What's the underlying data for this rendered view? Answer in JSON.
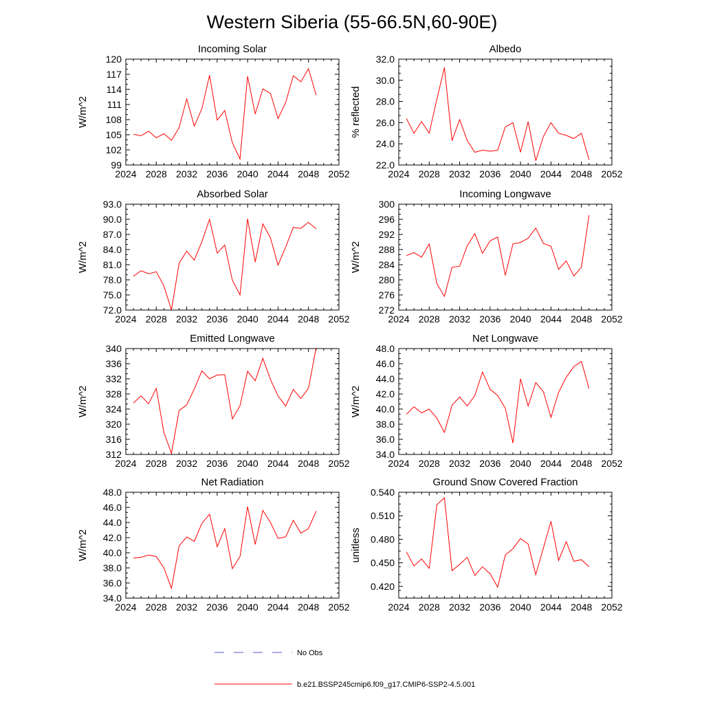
{
  "title": "Western Siberia (55-66.5N,60-90E)",
  "legend": {
    "entries": [
      {
        "label": "No Obs",
        "color": "#5555cc",
        "style": "dashed"
      },
      {
        "label": "b.e21.BSSP245cmip6.f09_g17.CMIP6-SSP2-4.5.001",
        "color": "#ff0000",
        "style": "solid"
      }
    ]
  },
  "chart_data": [
    {
      "type": "line",
      "title": "Incoming Solar",
      "ylabel": "W/m^2",
      "xlim": [
        2024,
        2052
      ],
      "xticks": [
        "2024",
        "2028",
        "2032",
        "2036",
        "2040",
        "2044",
        "2048",
        "2052"
      ],
      "ylim": [
        99,
        120
      ],
      "yticks": [
        "99",
        "102",
        "105",
        "108",
        "111",
        "114",
        "117",
        "120"
      ],
      "color": "#ff0000",
      "x": [
        2025,
        2026,
        2027,
        2028,
        2029,
        2030,
        2031,
        2032,
        2033,
        2034,
        2035,
        2036,
        2037,
        2038,
        2039,
        2040,
        2041,
        2042,
        2043,
        2044,
        2045,
        2046,
        2047,
        2048,
        2049
      ],
      "y": [
        105.1,
        104.8,
        105.7,
        104.4,
        105.2,
        103.9,
        106.4,
        112.1,
        106.7,
        110.2,
        116.8,
        107.9,
        109.8,
        103.4,
        100.2,
        116.6,
        109.1,
        114.1,
        113.2,
        108.2,
        111.4,
        116.7,
        115.5,
        118.1,
        112.9
      ]
    },
    {
      "type": "line",
      "title": "Albedo",
      "ylabel": "% reflected",
      "xlim": [
        2024,
        2052
      ],
      "xticks": [
        "2024",
        "2028",
        "2032",
        "2036",
        "2040",
        "2044",
        "2048",
        "2052"
      ],
      "ylim": [
        22.0,
        32.0
      ],
      "yticks": [
        "22.0",
        "24.0",
        "26.0",
        "28.0",
        "30.0",
        "32.0"
      ],
      "color": "#ff0000",
      "x": [
        2025,
        2026,
        2027,
        2028,
        2029,
        2030,
        2031,
        2032,
        2033,
        2034,
        2035,
        2036,
        2037,
        2038,
        2039,
        2040,
        2041,
        2042,
        2043,
        2044,
        2045,
        2046,
        2047,
        2048,
        2049
      ],
      "y": [
        26.4,
        25.0,
        26.1,
        25.0,
        28.2,
        31.2,
        24.3,
        26.3,
        24.3,
        23.2,
        23.4,
        23.3,
        23.4,
        25.6,
        26.0,
        23.2,
        26.1,
        22.4,
        24.7,
        26.0,
        25.0,
        24.8,
        24.5,
        25.0,
        22.5
      ]
    },
    {
      "type": "line",
      "title": "Absorbed Solar",
      "ylabel": "W/m^2",
      "xlim": [
        2024,
        2052
      ],
      "xticks": [
        "2024",
        "2028",
        "2032",
        "2036",
        "2040",
        "2044",
        "2048",
        "2052"
      ],
      "ylim": [
        72.0,
        93.0
      ],
      "yticks": [
        "72.0",
        "75.0",
        "78.0",
        "81.0",
        "84.0",
        "87.0",
        "90.0",
        "93.0"
      ],
      "color": "#ff0000",
      "x": [
        2025,
        2026,
        2027,
        2028,
        2029,
        2030,
        2031,
        2032,
        2033,
        2034,
        2035,
        2036,
        2037,
        2038,
        2039,
        2040,
        2041,
        2042,
        2043,
        2044,
        2045,
        2046,
        2047,
        2048,
        2049
      ],
      "y": [
        78.7,
        79.8,
        79.2,
        79.6,
        76.8,
        72.0,
        81.3,
        83.7,
        81.9,
        85.6,
        90.0,
        83.3,
        84.9,
        77.9,
        75.0,
        90.1,
        81.5,
        89.1,
        86.3,
        80.9,
        84.5,
        88.4,
        88.2,
        89.4,
        88.1
      ]
    },
    {
      "type": "line",
      "title": "Incoming Longwave",
      "ylabel": "W/m^2",
      "xlim": [
        2024,
        2052
      ],
      "xticks": [
        "2024",
        "2028",
        "2032",
        "2036",
        "2040",
        "2044",
        "2048",
        "2052"
      ],
      "ylim": [
        272,
        300
      ],
      "yticks": [
        "272",
        "276",
        "280",
        "284",
        "288",
        "292",
        "296",
        "300"
      ],
      "color": "#ff0000",
      "x": [
        2025,
        2026,
        2027,
        2028,
        2029,
        2030,
        2031,
        2032,
        2033,
        2034,
        2035,
        2036,
        2037,
        2038,
        2039,
        2040,
        2041,
        2042,
        2043,
        2044,
        2045,
        2046,
        2047,
        2048,
        2049
      ],
      "y": [
        286.4,
        287.2,
        286.0,
        289.5,
        279.0,
        275.6,
        283.3,
        283.6,
        289.0,
        292.2,
        287.0,
        290.3,
        291.3,
        281.2,
        289.5,
        289.9,
        291.0,
        293.7,
        289.6,
        288.9,
        282.8,
        285.0,
        281.0,
        283.3,
        297.1
      ]
    },
    {
      "type": "line",
      "title": "Emitted Longwave",
      "ylabel": "W/m^2",
      "xlim": [
        2024,
        2052
      ],
      "xticks": [
        "2024",
        "2028",
        "2032",
        "2036",
        "2040",
        "2044",
        "2048",
        "2052"
      ],
      "ylim": [
        312,
        340
      ],
      "yticks": [
        "312",
        "316",
        "320",
        "324",
        "328",
        "332",
        "336",
        "340"
      ],
      "color": "#ff0000",
      "x": [
        2025,
        2026,
        2027,
        2028,
        2029,
        2030,
        2031,
        2032,
        2033,
        2034,
        2035,
        2036,
        2037,
        2038,
        2039,
        2040,
        2041,
        2042,
        2043,
        2044,
        2045,
        2046,
        2047,
        2048,
        2049
      ],
      "y": [
        325.6,
        327.5,
        325.4,
        329.5,
        317.8,
        312.3,
        323.6,
        325.1,
        329.3,
        334.1,
        332.0,
        333.0,
        333.1,
        321.4,
        324.9,
        334.0,
        331.5,
        337.4,
        331.8,
        327.5,
        324.8,
        329.2,
        326.8,
        329.5,
        340.2
      ]
    },
    {
      "type": "line",
      "title": "Net Longwave",
      "ylabel": "W/m^2",
      "xlim": [
        2024,
        2052
      ],
      "xticks": [
        "2024",
        "2028",
        "2032",
        "2036",
        "2040",
        "2044",
        "2048",
        "2052"
      ],
      "ylim": [
        34.0,
        48.0
      ],
      "yticks": [
        "34.0",
        "36.0",
        "38.0",
        "40.0",
        "42.0",
        "44.0",
        "46.0",
        "48.0"
      ],
      "color": "#ff0000",
      "x": [
        2025,
        2026,
        2027,
        2028,
        2029,
        2030,
        2031,
        2032,
        2033,
        2034,
        2035,
        2036,
        2037,
        2038,
        2039,
        2040,
        2041,
        2042,
        2043,
        2044,
        2045,
        2046,
        2047,
        2048,
        2049
      ],
      "y": [
        39.3,
        40.3,
        39.5,
        40.0,
        38.8,
        36.9,
        40.5,
        41.6,
        40.4,
        41.8,
        44.9,
        42.6,
        41.8,
        40.1,
        35.5,
        44.0,
        40.4,
        43.5,
        42.3,
        38.9,
        42.2,
        44.2,
        45.6,
        46.3,
        42.7
      ]
    },
    {
      "type": "line",
      "title": "Net Radiation",
      "ylabel": "W/m^2",
      "xlim": [
        2024,
        2052
      ],
      "xticks": [
        "2024",
        "2028",
        "2032",
        "2036",
        "2040",
        "2044",
        "2048",
        "2052"
      ],
      "ylim": [
        34.0,
        48.0
      ],
      "yticks": [
        "34.0",
        "36.0",
        "38.0",
        "40.0",
        "42.0",
        "44.0",
        "46.0",
        "48.0"
      ],
      "color": "#ff0000",
      "x": [
        2025,
        2026,
        2027,
        2028,
        2029,
        2030,
        2031,
        2032,
        2033,
        2034,
        2035,
        2036,
        2037,
        2038,
        2039,
        2040,
        2041,
        2042,
        2043,
        2044,
        2045,
        2046,
        2047,
        2048,
        2049
      ],
      "y": [
        39.3,
        39.4,
        39.7,
        39.5,
        38.0,
        35.3,
        40.9,
        42.1,
        41.5,
        43.9,
        45.1,
        40.8,
        43.2,
        37.9,
        39.5,
        46.1,
        41.1,
        45.6,
        44.0,
        41.9,
        42.1,
        44.3,
        42.6,
        43.2,
        45.5
      ]
    },
    {
      "type": "line",
      "title": "Ground Snow Covered Fraction",
      "ylabel": "unitless",
      "xlim": [
        2024,
        2052
      ],
      "xticks": [
        "2024",
        "2028",
        "2032",
        "2036",
        "2040",
        "2044",
        "2048",
        "2052"
      ],
      "ylim": [
        0.405,
        0.54
      ],
      "yticks": [
        "0.420",
        "0.450",
        "0.480",
        "0.510",
        "0.540"
      ],
      "color": "#ff0000",
      "x": [
        2025,
        2026,
        2027,
        2028,
        2029,
        2030,
        2031,
        2032,
        2033,
        2034,
        2035,
        2036,
        2037,
        2038,
        2039,
        2040,
        2041,
        2042,
        2043,
        2044,
        2045,
        2046,
        2047,
        2048,
        2049
      ],
      "y": [
        0.464,
        0.446,
        0.455,
        0.443,
        0.524,
        0.533,
        0.44,
        0.448,
        0.457,
        0.434,
        0.445,
        0.436,
        0.419,
        0.46,
        0.468,
        0.481,
        0.474,
        0.435,
        0.469,
        0.503,
        0.453,
        0.477,
        0.452,
        0.454,
        0.445
      ]
    }
  ]
}
